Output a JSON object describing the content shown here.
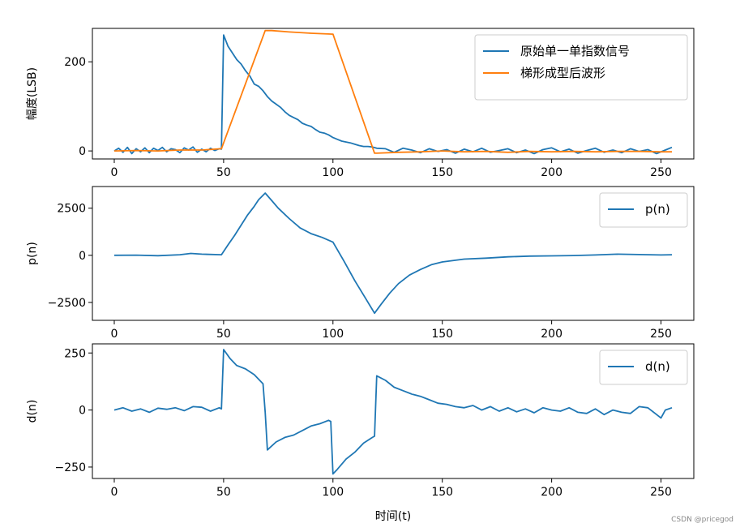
{
  "colors": {
    "blue": "#1f77b4",
    "orange": "#ff7f0e"
  },
  "watermark": "CSDN @pricegod",
  "chart_data": [
    {
      "type": "line",
      "ylabel": "幅度(LSB)",
      "xlim": [
        -10,
        265
      ],
      "ylim": [
        -18,
        275
      ],
      "xticks": [
        0,
        50,
        100,
        150,
        200,
        250
      ],
      "yticks": [
        0,
        200
      ],
      "legend": "top-right",
      "series": [
        {
          "name": "原始单一单指数信号",
          "color": "blue",
          "x": [
            0,
            2,
            4,
            6,
            8,
            10,
            12,
            14,
            16,
            18,
            20,
            22,
            24,
            26,
            28,
            30,
            32,
            34,
            36,
            38,
            40,
            42,
            44,
            46,
            48,
            49,
            50,
            52,
            54,
            56,
            58,
            60,
            62,
            64,
            66,
            68,
            70,
            72,
            74,
            76,
            78,
            80,
            82,
            84,
            86,
            88,
            90,
            92,
            94,
            96,
            98,
            100,
            102,
            104,
            106,
            108,
            110,
            112,
            114,
            116,
            118,
            120,
            124,
            128,
            132,
            136,
            140,
            144,
            148,
            152,
            156,
            160,
            164,
            168,
            172,
            176,
            180,
            184,
            188,
            192,
            196,
            200,
            204,
            208,
            212,
            216,
            220,
            224,
            228,
            232,
            236,
            240,
            244,
            248,
            252,
            255
          ],
          "y": [
            0,
            6,
            -3,
            8,
            -6,
            5,
            -2,
            7,
            -4,
            6,
            1,
            8,
            -2,
            5,
            3,
            -4,
            7,
            2,
            9,
            -3,
            4,
            -2,
            6,
            1,
            5,
            4,
            260,
            235,
            220,
            205,
            195,
            180,
            168,
            150,
            145,
            135,
            122,
            112,
            105,
            98,
            88,
            80,
            75,
            70,
            62,
            58,
            55,
            48,
            42,
            40,
            36,
            30,
            26,
            22,
            20,
            18,
            15,
            12,
            10,
            10,
            9,
            6,
            5,
            -3,
            6,
            2,
            -4,
            5,
            -1,
            3,
            -5,
            4,
            -2,
            6,
            -3,
            1,
            5,
            -4,
            2,
            -6,
            3,
            7,
            -2,
            4,
            -5,
            1,
            6,
            -3,
            2,
            -4,
            5,
            -1,
            3,
            -6,
            2,
            8
          ]
        },
        {
          "name": "梯形成型后波形",
          "color": "orange",
          "x": [
            0,
            10,
            20,
            30,
            40,
            49,
            69,
            72,
            80,
            90,
            100,
            119,
            120,
            130,
            140,
            150,
            160,
            170,
            180,
            190,
            200,
            210,
            220,
            230,
            240,
            250,
            255
          ],
          "y": [
            0,
            1,
            0,
            2,
            2,
            5,
            270,
            270,
            267,
            264,
            262,
            -5,
            -5,
            -3,
            -2,
            0,
            -2,
            -1,
            -3,
            -1,
            -2,
            -1,
            -2,
            -1,
            -1,
            -2,
            -2
          ]
        }
      ]
    },
    {
      "type": "line",
      "ylabel": "p(n)",
      "xlim": [
        -10,
        265
      ],
      "ylim": [
        -3450,
        3650
      ],
      "xticks": [
        0,
        50,
        100,
        150,
        200,
        250
      ],
      "yticks": [
        2500,
        0,
        -2500
      ],
      "legend": "top-right",
      "series": [
        {
          "name": "p(n)",
          "color": "blue",
          "x": [
            0,
            10,
            20,
            30,
            35,
            40,
            49,
            52,
            55,
            58,
            61,
            64,
            66,
            69,
            72,
            75,
            80,
            85,
            90,
            95,
            100,
            105,
            110,
            115,
            119,
            122,
            126,
            130,
            135,
            140,
            145,
            150,
            160,
            170,
            180,
            190,
            200,
            210,
            220,
            230,
            240,
            250,
            255
          ],
          "y": [
            0,
            10,
            -20,
            30,
            100,
            60,
            30,
            550,
            1050,
            1600,
            2150,
            2600,
            2950,
            3300,
            2900,
            2500,
            1950,
            1450,
            1150,
            950,
            700,
            -300,
            -1350,
            -2300,
            -3070,
            -2600,
            -2000,
            -1500,
            -1050,
            -750,
            -500,
            -350,
            -200,
            -150,
            -80,
            -40,
            -30,
            -10,
            20,
            60,
            40,
            20,
            30
          ]
        }
      ]
    },
    {
      "type": "line",
      "ylabel": "d(n)",
      "xlim": [
        -10,
        265
      ],
      "ylim": [
        -300,
        290
      ],
      "xticks": [
        0,
        50,
        100,
        150,
        200,
        250
      ],
      "yticks": [
        250,
        0,
        -250
      ],
      "legend": "top-right",
      "series": [
        {
          "name": "d(n)",
          "color": "blue",
          "x": [
            0,
            4,
            8,
            12,
            16,
            20,
            24,
            28,
            32,
            36,
            40,
            44,
            48,
            49,
            50,
            53,
            56,
            60,
            64,
            68,
            69,
            70,
            74,
            78,
            82,
            86,
            90,
            94,
            98,
            99,
            100,
            102,
            106,
            110,
            114,
            118,
            119,
            120,
            124,
            128,
            132,
            136,
            140,
            144,
            148,
            152,
            156,
            160,
            164,
            168,
            172,
            176,
            180,
            184,
            188,
            192,
            196,
            200,
            204,
            208,
            212,
            216,
            220,
            224,
            228,
            232,
            236,
            240,
            244,
            248,
            250,
            252,
            255
          ],
          "y": [
            0,
            10,
            -5,
            5,
            -10,
            8,
            3,
            10,
            -3,
            15,
            12,
            -5,
            10,
            5,
            265,
            225,
            195,
            180,
            155,
            115,
            -10,
            -175,
            -140,
            -120,
            -110,
            -90,
            -70,
            -60,
            -45,
            -50,
            -280,
            -260,
            -215,
            -185,
            -145,
            -120,
            -115,
            150,
            130,
            100,
            85,
            70,
            60,
            45,
            30,
            25,
            15,
            10,
            20,
            0,
            15,
            -5,
            10,
            -8,
            5,
            -12,
            10,
            0,
            -5,
            10,
            -10,
            -15,
            5,
            -20,
            0,
            -10,
            -15,
            15,
            10,
            -20,
            -35,
            0,
            10
          ]
        }
      ]
    }
  ],
  "xlabel": "时间(t)"
}
